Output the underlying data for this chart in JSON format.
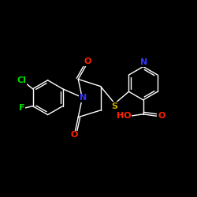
{
  "background_color": "#000000",
  "bond_color": "#ffffff",
  "atoms": {
    "Cl": {
      "color": "#00dd00",
      "fontsize": 8
    },
    "F": {
      "color": "#00dd00",
      "fontsize": 8
    },
    "N": {
      "color": "#3333ff",
      "fontsize": 8
    },
    "O": {
      "color": "#ff2200",
      "fontsize": 8
    },
    "S": {
      "color": "#ccaa00",
      "fontsize": 8
    },
    "HO": {
      "color": "#ff2200",
      "fontsize": 8
    }
  },
  "figsize": [
    2.5,
    2.5
  ],
  "dpi": 100
}
